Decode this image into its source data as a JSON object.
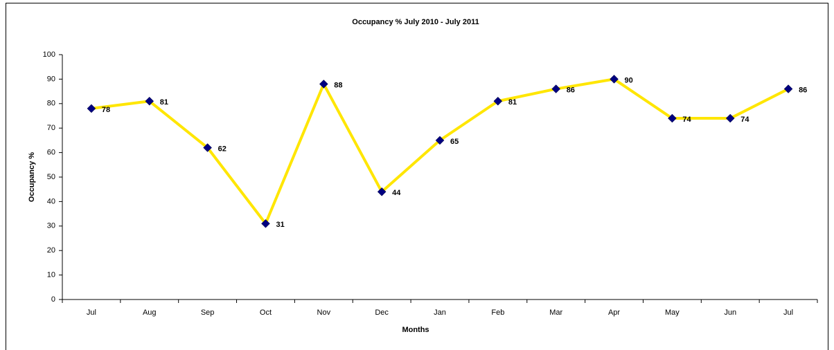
{
  "chart_data": {
    "type": "line",
    "title": "Occupancy %  July 2010 - July 2011",
    "x_label": "Months",
    "y_label": "Occupancy %",
    "categories": [
      "Jul",
      "Aug",
      "Sep",
      "Oct",
      "Nov",
      "Dec",
      "Jan",
      "Feb",
      "Mar",
      "Apr",
      "May",
      "Jun",
      "Jul"
    ],
    "series": [
      {
        "name": "Occupancy %",
        "color": "#ffe600",
        "marker_color": "#000080",
        "values": [
          78,
          81,
          62,
          31,
          88,
          44,
          65,
          81,
          86,
          90,
          74,
          74,
          86
        ]
      }
    ],
    "ylim": [
      0,
      100
    ],
    "yticks": [
      0,
      10,
      20,
      30,
      40,
      50,
      60,
      70,
      80,
      90,
      100
    ],
    "grid": false,
    "data_labels": true
  }
}
